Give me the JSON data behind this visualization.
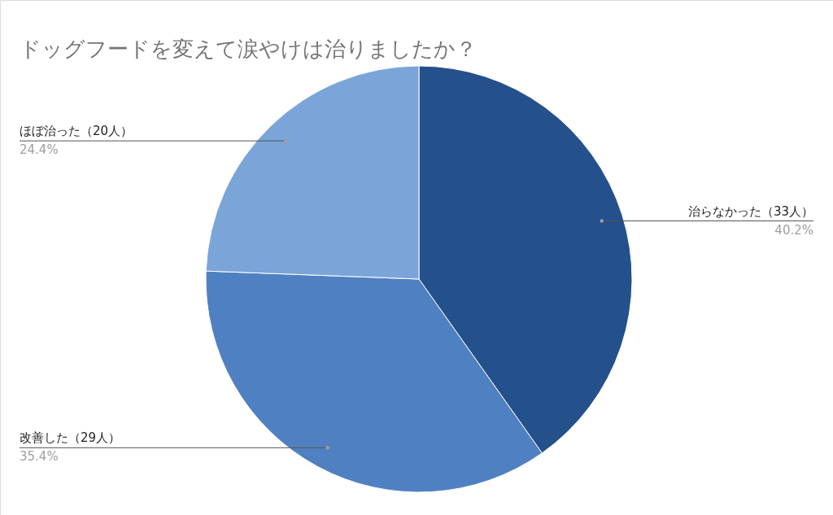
{
  "chart_data": {
    "type": "pie",
    "title": "ドッグフードを変えて涙やけは治りましたか？",
    "categories": [
      "治らなかった（33人）",
      "改善した（29人）",
      "ほぼ治った（20人）"
    ],
    "values": [
      40.2,
      35.4,
      24.4
    ],
    "value_labels": [
      "40.2%",
      "35.4%",
      "24.4%"
    ],
    "colors": [
      "#24508c",
      "#4f81c2",
      "#7ba5d8"
    ]
  }
}
